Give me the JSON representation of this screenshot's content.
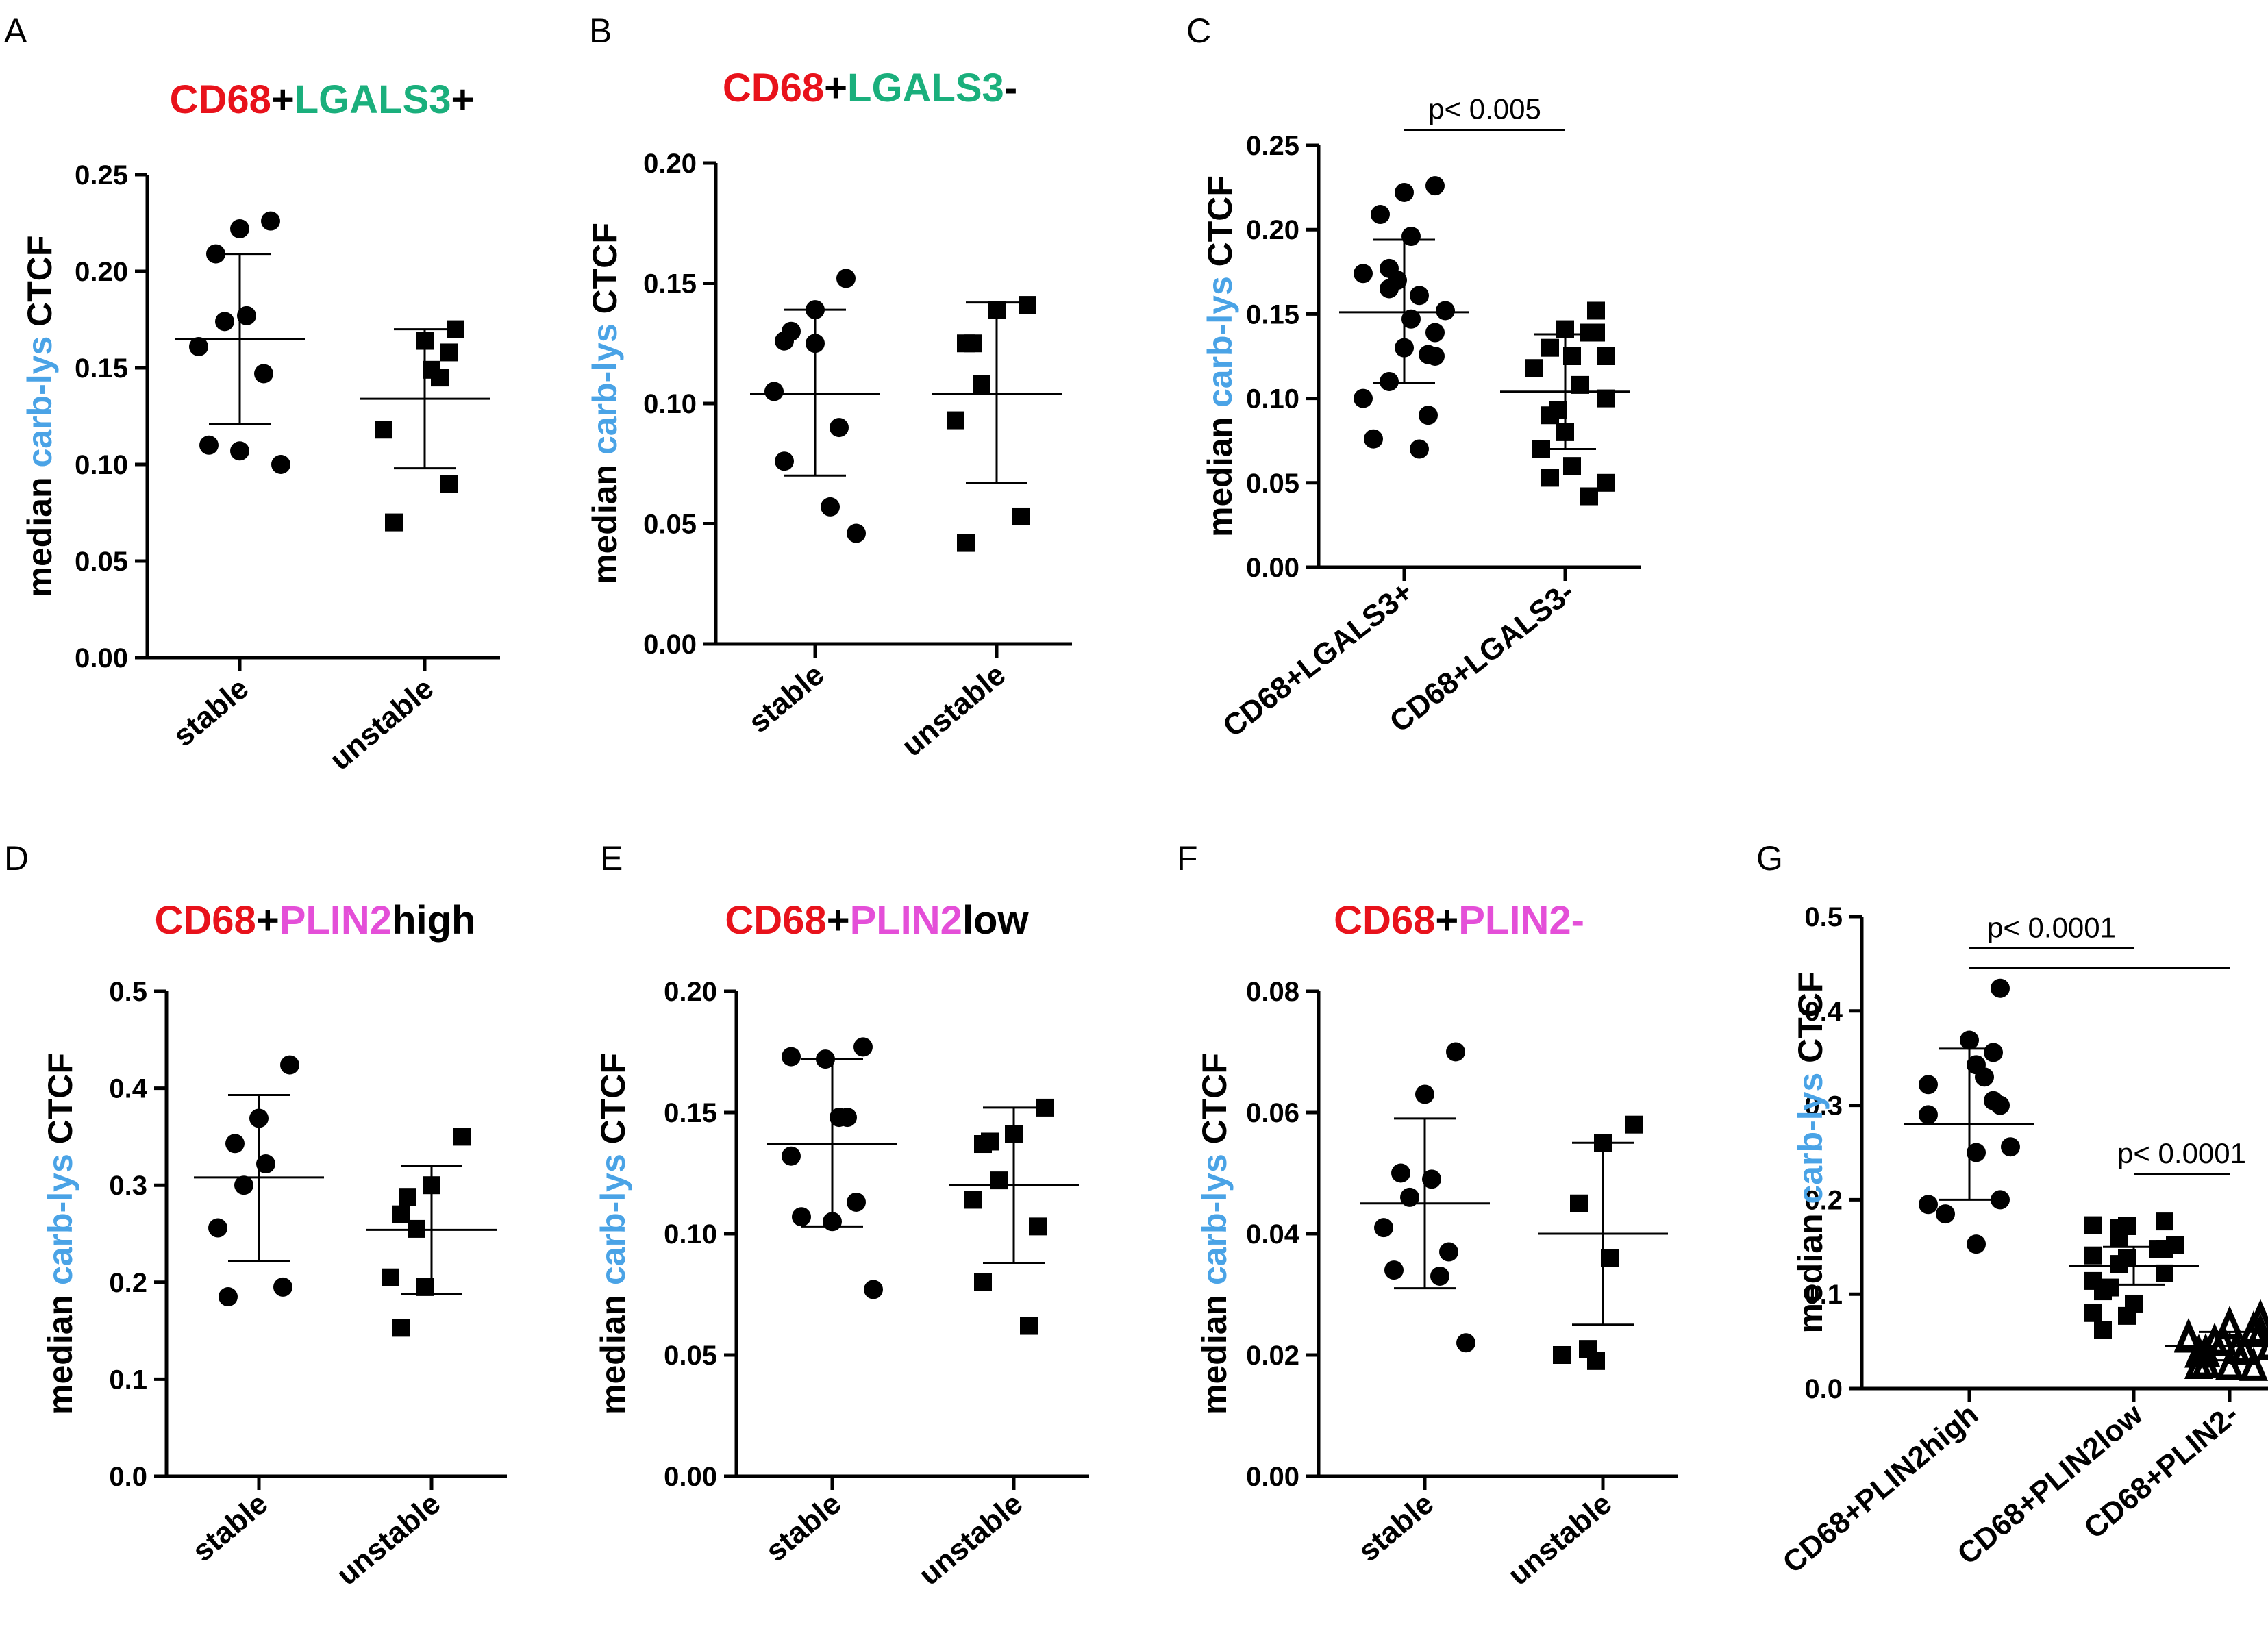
{
  "colors": {
    "cd68": "#e8121b",
    "lgals3": "#1aaf7c",
    "plin2": "#e44fd8",
    "carb": "#4aa3e6",
    "black": "#000000"
  },
  "chart_data": [
    {
      "panel": "A",
      "type": "scatter",
      "title_parts": [
        {
          "text": "CD68",
          "color": "cd68"
        },
        {
          "text": "+",
          "color": "black"
        },
        {
          "text": "LGALS3",
          "color": "lgals3"
        },
        {
          "text": "+",
          "color": "black"
        }
      ],
      "ylabel_parts": [
        {
          "text": "median ",
          "color": "black"
        },
        {
          "text": "carb-lys",
          "color": "carb"
        },
        {
          "text": " CTCF",
          "color": "black"
        }
      ],
      "ylim": [
        0,
        0.25
      ],
      "yticks": [
        "0.00",
        "0.05",
        "0.10",
        "0.15",
        "0.20",
        "0.25"
      ],
      "categories": [
        "stable",
        "unstable"
      ],
      "series": [
        {
          "name": "stable",
          "marker": "circle",
          "mean": 0.165,
          "sd_low": 0.121,
          "sd_high": 0.209,
          "values": [
            0.226,
            0.222,
            0.209,
            0.177,
            0.174,
            0.161,
            0.147,
            0.11,
            0.107,
            0.1
          ]
        },
        {
          "name": "unstable",
          "marker": "square",
          "mean": 0.134,
          "sd_low": 0.098,
          "sd_high": 0.17,
          "values": [
            0.17,
            0.164,
            0.158,
            0.149,
            0.145,
            0.118,
            0.09,
            0.07
          ]
        }
      ]
    },
    {
      "panel": "B",
      "type": "scatter",
      "title_parts": [
        {
          "text": "CD68",
          "color": "cd68"
        },
        {
          "text": "+",
          "color": "black"
        },
        {
          "text": "LGALS3",
          "color": "lgals3"
        },
        {
          "text": "-",
          "color": "black"
        }
      ],
      "ylabel_parts": [
        {
          "text": "median ",
          "color": "black"
        },
        {
          "text": "carb-lys",
          "color": "carb"
        },
        {
          "text": " CTCF",
          "color": "black"
        }
      ],
      "ylim": [
        0,
        0.2
      ],
      "yticks": [
        "0.00",
        "0.05",
        "0.10",
        "0.15",
        "0.20"
      ],
      "categories": [
        "stable",
        "unstable"
      ],
      "series": [
        {
          "name": "stable",
          "marker": "circle",
          "mean": 0.104,
          "sd_low": 0.07,
          "sd_high": 0.139,
          "values": [
            0.152,
            0.139,
            0.13,
            0.126,
            0.125,
            0.105,
            0.09,
            0.076,
            0.057,
            0.046
          ]
        },
        {
          "name": "unstable",
          "marker": "square",
          "mean": 0.104,
          "sd_low": 0.067,
          "sd_high": 0.142,
          "values": [
            0.141,
            0.139,
            0.125,
            0.125,
            0.108,
            0.093,
            0.053,
            0.042
          ]
        }
      ]
    },
    {
      "panel": "C",
      "type": "scatter",
      "ylabel_parts": [
        {
          "text": "median ",
          "color": "black"
        },
        {
          "text": "carb-lys",
          "color": "carb"
        },
        {
          "text": " CTCF",
          "color": "black"
        }
      ],
      "ylim": [
        0,
        0.25
      ],
      "yticks": [
        "0.00",
        "0.05",
        "0.10",
        "0.15",
        "0.20",
        "0.25"
      ],
      "categories": [
        "CD68+LGALS3+",
        "CD68+LGALS3-"
      ],
      "annotations": [
        {
          "text": "p< 0.005",
          "from": 0,
          "to": 1,
          "y": 0.264
        }
      ],
      "series": [
        {
          "name": "CD68+LGALS3+",
          "marker": "circle",
          "mean": 0.151,
          "sd_low": 0.109,
          "sd_high": 0.194,
          "values": [
            0.226,
            0.222,
            0.209,
            0.196,
            0.177,
            0.174,
            0.17,
            0.165,
            0.161,
            0.152,
            0.147,
            0.139,
            0.13,
            0.126,
            0.125,
            0.11,
            0.1,
            0.09,
            0.076,
            0.07
          ]
        },
        {
          "name": "CD68+LGALS3-",
          "marker": "square",
          "mean": 0.104,
          "sd_low": 0.07,
          "sd_high": 0.138,
          "values": [
            0.152,
            0.141,
            0.139,
            0.139,
            0.13,
            0.125,
            0.125,
            0.118,
            0.108,
            0.1,
            0.093,
            0.09,
            0.08,
            0.07,
            0.06,
            0.053,
            0.05,
            0.042
          ]
        }
      ]
    },
    {
      "panel": "D",
      "type": "scatter",
      "title_parts": [
        {
          "text": "CD68",
          "color": "cd68"
        },
        {
          "text": "+",
          "color": "black"
        },
        {
          "text": "PLIN2",
          "color": "plin2"
        },
        {
          "text": "high",
          "color": "black"
        }
      ],
      "ylabel_parts": [
        {
          "text": "median ",
          "color": "black"
        },
        {
          "text": "carb-lys",
          "color": "carb"
        },
        {
          "text": " CTCF",
          "color": "black"
        }
      ],
      "ylim": [
        0,
        0.5
      ],
      "yticks": [
        "0.0",
        "0.1",
        "0.2",
        "0.3",
        "0.4",
        "0.5"
      ],
      "categories": [
        "stable",
        "unstable"
      ],
      "series": [
        {
          "name": "stable",
          "marker": "circle",
          "mean": 0.308,
          "sd_low": 0.222,
          "sd_high": 0.393,
          "values": [
            0.424,
            0.369,
            0.343,
            0.322,
            0.3,
            0.256,
            0.195,
            0.185
          ]
        },
        {
          "name": "unstable",
          "marker": "square",
          "mean": 0.254,
          "sd_low": 0.188,
          "sd_high": 0.32,
          "values": [
            0.35,
            0.3,
            0.288,
            0.27,
            0.255,
            0.205,
            0.195,
            0.153
          ]
        }
      ]
    },
    {
      "panel": "E",
      "type": "scatter",
      "title_parts": [
        {
          "text": "CD68",
          "color": "cd68"
        },
        {
          "text": "+",
          "color": "black"
        },
        {
          "text": "PLIN2",
          "color": "plin2"
        },
        {
          "text": "low",
          "color": "black"
        }
      ],
      "ylabel_parts": [
        {
          "text": "median ",
          "color": "black"
        },
        {
          "text": "carb-lys",
          "color": "carb"
        },
        {
          "text": " CTCF",
          "color": "black"
        }
      ],
      "ylim": [
        0,
        0.2
      ],
      "yticks": [
        "0.00",
        "0.05",
        "0.10",
        "0.15",
        "0.20"
      ],
      "categories": [
        "stable",
        "unstable"
      ],
      "series": [
        {
          "name": "stable",
          "marker": "circle",
          "mean": 0.137,
          "sd_low": 0.103,
          "sd_high": 0.172,
          "values": [
            0.177,
            0.173,
            0.172,
            0.148,
            0.148,
            0.132,
            0.113,
            0.107,
            0.105,
            0.077
          ]
        },
        {
          "name": "unstable",
          "marker": "square",
          "mean": 0.12,
          "sd_low": 0.088,
          "sd_high": 0.152,
          "values": [
            0.152,
            0.141,
            0.138,
            0.137,
            0.122,
            0.114,
            0.103,
            0.08,
            0.062
          ]
        }
      ]
    },
    {
      "panel": "F",
      "type": "scatter",
      "title_parts": [
        {
          "text": "CD68",
          "color": "cd68"
        },
        {
          "text": "+",
          "color": "black"
        },
        {
          "text": "PLIN2",
          "color": "plin2"
        },
        {
          "text": "-",
          "color": "plin2"
        }
      ],
      "ylabel_parts": [
        {
          "text": "median ",
          "color": "black"
        },
        {
          "text": "carb-lys",
          "color": "carb"
        },
        {
          "text": " CTCF",
          "color": "black"
        }
      ],
      "ylim": [
        0,
        0.08
      ],
      "yticks": [
        "0.00",
        "0.02",
        "0.04",
        "0.06",
        "0.08"
      ],
      "categories": [
        "stable",
        "unstable"
      ],
      "series": [
        {
          "name": "stable",
          "marker": "circle",
          "mean": 0.045,
          "sd_low": 0.031,
          "sd_high": 0.059,
          "values": [
            0.07,
            0.063,
            0.05,
            0.049,
            0.046,
            0.041,
            0.037,
            0.034,
            0.033,
            0.022
          ]
        },
        {
          "name": "unstable",
          "marker": "square",
          "mean": 0.04,
          "sd_low": 0.025,
          "sd_high": 0.055,
          "values": [
            0.058,
            0.055,
            0.045,
            0.036,
            0.021,
            0.02,
            0.019
          ]
        }
      ]
    },
    {
      "panel": "G",
      "type": "scatter",
      "ylabel_parts": [
        {
          "text": "median ",
          "color": "black"
        },
        {
          "text": "carb-lys",
          "color": "carb"
        },
        {
          "text": " CTCF",
          "color": "black"
        }
      ],
      "ylim": [
        0,
        0.5
      ],
      "yticks": [
        "0.0",
        "0.1",
        "0.2",
        "0.3",
        "0.4",
        "0.5"
      ],
      "categories": [
        "CD68+PLIN2high",
        "CD68+PLIN2low",
        "CD68+PLIN2-"
      ],
      "annotations": [
        {
          "text": "p< 0.0001",
          "from": 0,
          "to": 1,
          "y": 0.475,
          "to_far": 2
        },
        {
          "text": "p< 0.0001",
          "from": 1,
          "to": 2,
          "y": 0.236
        }
      ],
      "series": [
        {
          "name": "CD68+PLIN2high",
          "marker": "circle",
          "mean": 0.28,
          "sd_low": 0.2,
          "sd_high": 0.36,
          "values": [
            0.424,
            0.369,
            0.356,
            0.343,
            0.33,
            0.322,
            0.305,
            0.3,
            0.29,
            0.256,
            0.25,
            0.2,
            0.195,
            0.185,
            0.153
          ]
        },
        {
          "name": "CD68+PLIN2low",
          "marker": "square",
          "mean": 0.13,
          "sd_low": 0.11,
          "sd_high": 0.15,
          "values": [
            0.177,
            0.173,
            0.172,
            0.17,
            0.16,
            0.152,
            0.148,
            0.148,
            0.141,
            0.138,
            0.132,
            0.122,
            0.114,
            0.107,
            0.103,
            0.09,
            0.08,
            0.077,
            0.062
          ]
        },
        {
          "name": "CD68+PLIN2-",
          "marker": "triangle",
          "mean": 0.045,
          "sd_low": 0.03,
          "sd_high": 0.06,
          "values": [
            0.07,
            0.063,
            0.058,
            0.055,
            0.05,
            0.049,
            0.046,
            0.045,
            0.041,
            0.037,
            0.036,
            0.034,
            0.033,
            0.022,
            0.021,
            0.02,
            0.019
          ]
        }
      ]
    }
  ]
}
